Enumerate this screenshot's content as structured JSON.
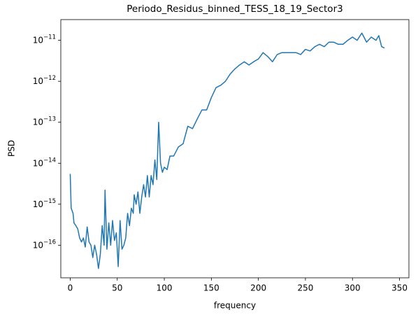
{
  "chart_data": {
    "type": "line",
    "title": "Periodo_Residus_binned_TESS_18_19_Sector3",
    "x_label": "frequency",
    "y_label": "PSD",
    "log_y": true,
    "xlim": [
      -10,
      360
    ],
    "ylim": [
      1.6e-17,
      3.2e-11
    ],
    "xticks": [
      0,
      50,
      100,
      150,
      200,
      250,
      300,
      350
    ],
    "yticks": [
      {
        "value": 1e-16,
        "label": "10−16"
      },
      {
        "value": 1e-15,
        "label": "10−15"
      },
      {
        "value": 1e-14,
        "label": "10−14"
      },
      {
        "value": 1e-13,
        "label": "10−13"
      },
      {
        "value": 1e-12,
        "label": "10−12"
      },
      {
        "value": 1e-11,
        "label": "10−11"
      }
    ],
    "x": [
      0,
      1,
      3,
      4,
      6,
      8,
      10,
      12,
      14,
      16,
      18,
      20,
      22,
      24,
      26,
      28,
      30,
      32,
      34,
      36,
      37,
      39,
      41,
      43,
      45,
      47,
      49,
      51,
      53,
      55,
      57,
      59,
      61,
      63,
      65,
      67,
      68,
      70,
      72,
      74,
      76,
      78,
      80,
      82,
      84,
      86,
      88,
      90,
      92,
      94,
      96,
      98,
      100,
      103,
      106,
      110,
      115,
      120,
      125,
      130,
      135,
      140,
      145,
      150,
      155,
      160,
      165,
      170,
      175,
      180,
      185,
      190,
      195,
      200,
      205,
      210,
      215,
      220,
      225,
      230,
      240,
      245,
      250,
      255,
      260,
      265,
      270,
      275,
      280,
      285,
      290,
      295,
      300,
      305,
      310,
      315,
      320,
      325,
      328,
      331,
      334
    ],
    "series": [
      {
        "name": "PSD",
        "color": "#1f77b4",
        "values": [
          5.5e-15,
          8e-16,
          6e-16,
          3.5e-16,
          3e-16,
          2.5e-16,
          1.5e-16,
          1.2e-16,
          1.5e-16,
          9e-17,
          2.8e-16,
          1.2e-16,
          1e-16,
          5e-17,
          1e-16,
          6e-17,
          2.7e-17,
          6e-17,
          3e-16,
          1e-16,
          2.2e-15,
          8e-17,
          3.5e-16,
          1e-16,
          4e-16,
          1.3e-16,
          2e-16,
          3e-17,
          4e-16,
          8e-17,
          1e-16,
          1.5e-16,
          6e-16,
          3e-16,
          8e-16,
          6e-16,
          1.7e-15,
          1e-15,
          2e-15,
          6e-16,
          1.5e-15,
          3e-15,
          1.5e-15,
          5e-15,
          1.5e-15,
          5e-15,
          3e-15,
          1.2e-14,
          4e-15,
          1e-13,
          1e-14,
          6e-15,
          8e-15,
          7e-15,
          1.5e-14,
          1.5e-14,
          2.5e-14,
          3e-14,
          8e-14,
          7e-14,
          1.2e-13,
          2e-13,
          2e-13,
          4e-13,
          7e-13,
          8e-13,
          1e-12,
          1.5e-12,
          2e-12,
          2.5e-12,
          3e-12,
          2.5e-12,
          3e-12,
          3.5e-12,
          5e-12,
          4e-12,
          3e-12,
          4.5e-12,
          5e-12,
          5e-12,
          5e-12,
          4.5e-12,
          6e-12,
          5.5e-12,
          7e-12,
          8e-12,
          7e-12,
          9e-12,
          9e-12,
          8e-12,
          8e-12,
          1e-11,
          1.2e-11,
          1e-11,
          1.5e-11,
          9e-12,
          1.2e-11,
          1e-11,
          1.3e-11,
          7e-12,
          6.5e-12
        ]
      }
    ]
  }
}
